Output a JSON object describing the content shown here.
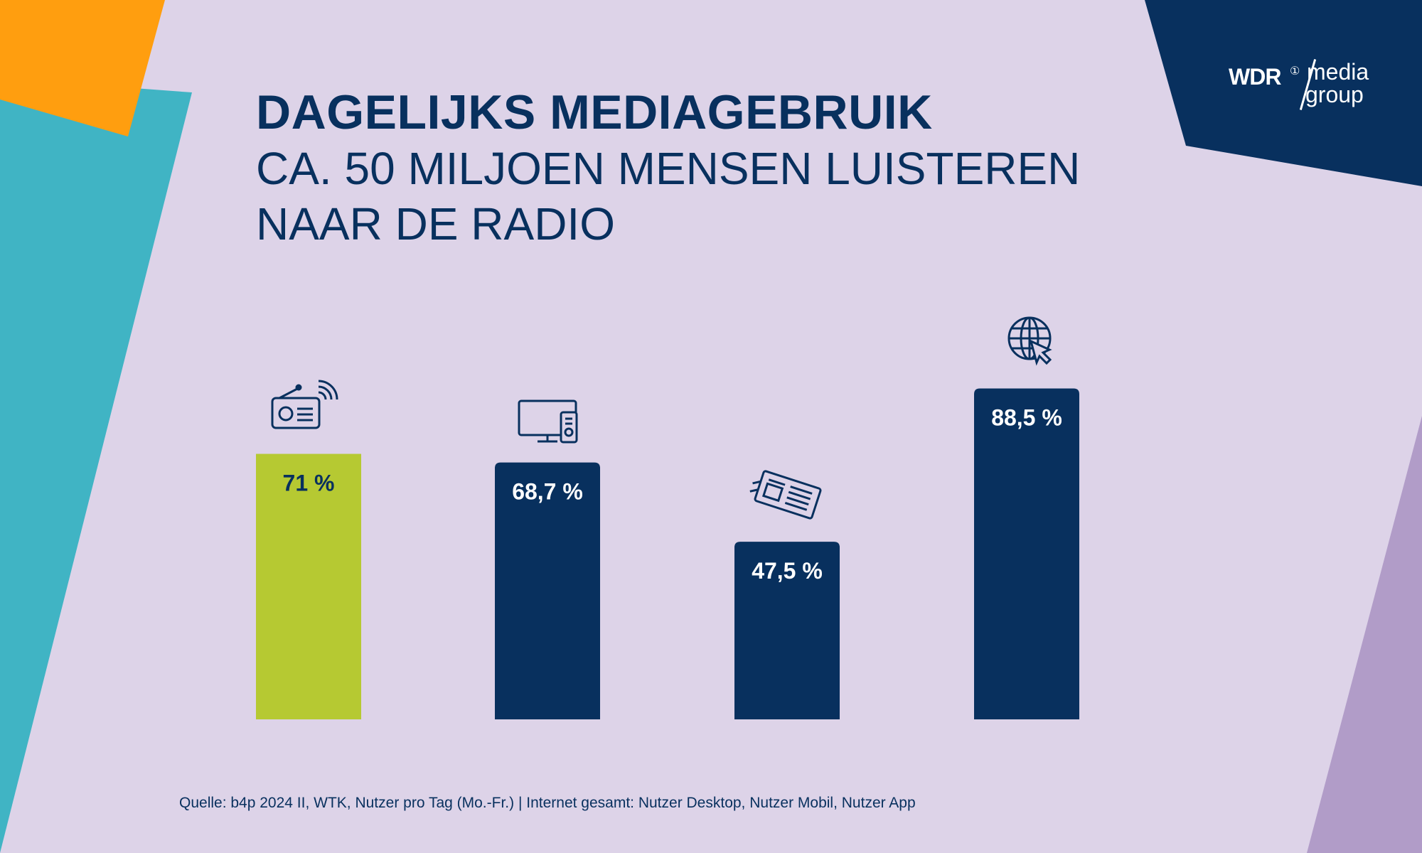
{
  "title": "DAGELIJKS MEDIAGEBRUIK",
  "subtitle_lines": [
    "CA. 50 MILJOEN MENSEN LUISTEREN",
    "NAAR DE RADIO"
  ],
  "logo": {
    "brand": "WDR",
    "line1": "media",
    "line2": "group"
  },
  "colors": {
    "background": "#ddd3e8",
    "navy": "#08305e",
    "lime": "#b6c932",
    "orange": "#ff9e0f",
    "teal": "#40b4c4",
    "lavender": "#b19cc8"
  },
  "chart_data": {
    "type": "bar",
    "categories": [
      "Radio",
      "TV",
      "Zeitung",
      "Internet"
    ],
    "category_icons": [
      "radio-icon",
      "tv-icon",
      "newspaper-icon",
      "globe-icon"
    ],
    "values": [
      71,
      68.7,
      47.5,
      88.5
    ],
    "labels": [
      "71 %",
      "68,7 %",
      "47,5 %",
      "88,5 %"
    ],
    "bar_colors": [
      "#b6c932",
      "#08305e",
      "#08305e",
      "#08305e"
    ],
    "label_colors": [
      "#08305e",
      "#ffffff",
      "#ffffff",
      "#ffffff"
    ],
    "ylim": [
      0,
      100
    ],
    "xlabel": "",
    "ylabel": "",
    "grid": false
  },
  "source": "Quelle: b4p 2024 II, WTK, Nutzer pro Tag (Mo.-Fr.) | Internet gesamt: Nutzer Desktop, Nutzer Mobil, Nutzer App"
}
